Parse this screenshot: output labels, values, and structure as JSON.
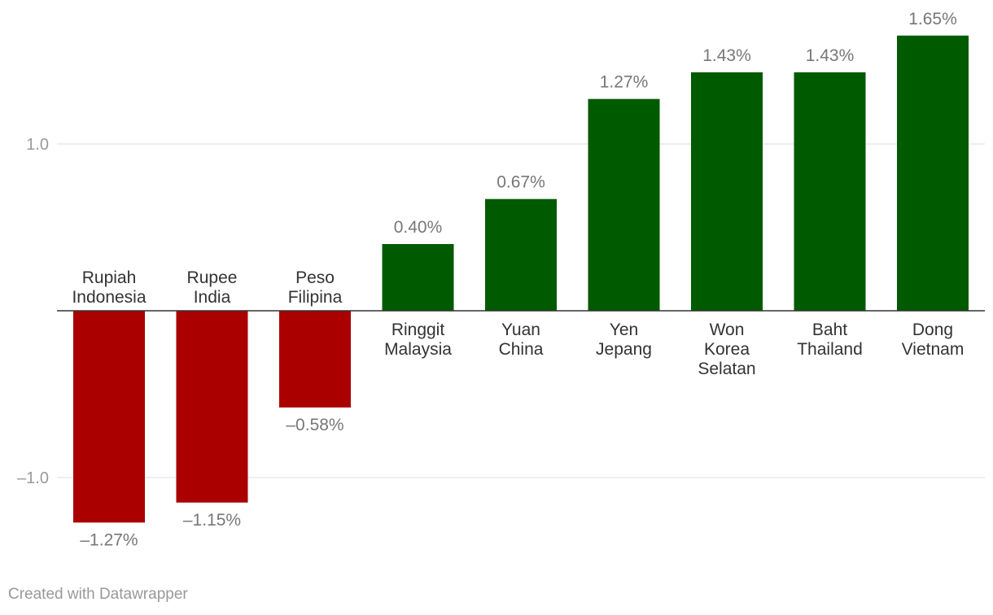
{
  "chart_data": {
    "type": "bar",
    "categories": [
      [
        "Rupiah",
        "Indonesia"
      ],
      [
        "Rupee",
        "India"
      ],
      [
        "Peso",
        "Filipina"
      ],
      [
        "Ringgit",
        "Malaysia"
      ],
      [
        "Yuan",
        "China"
      ],
      [
        "Yen",
        "Jepang"
      ],
      [
        "Won",
        "Korea",
        "Selatan"
      ],
      [
        "Baht",
        "Thailand"
      ],
      [
        "Dong",
        "Vietnam"
      ]
    ],
    "values": [
      -1.27,
      -1.15,
      -0.58,
      0.4,
      0.67,
      1.27,
      1.43,
      1.43,
      1.65
    ],
    "value_labels": [
      "–1.27%",
      "–1.15%",
      "–0.58%",
      "0.40%",
      "0.67%",
      "1.27%",
      "1.43%",
      "1.43%",
      "1.65%"
    ],
    "y_ticks": [
      1.0,
      -1.0
    ],
    "y_tick_labels": [
      "1.0",
      "–1.0"
    ],
    "ylim": [
      -1.4,
      1.85
    ],
    "grid": true,
    "colors": {
      "positive": "#005a00",
      "negative": "#aa0000",
      "grid": "#dddddd",
      "baseline": "#333333"
    }
  },
  "footer": {
    "credit": "Created with Datawrapper"
  }
}
